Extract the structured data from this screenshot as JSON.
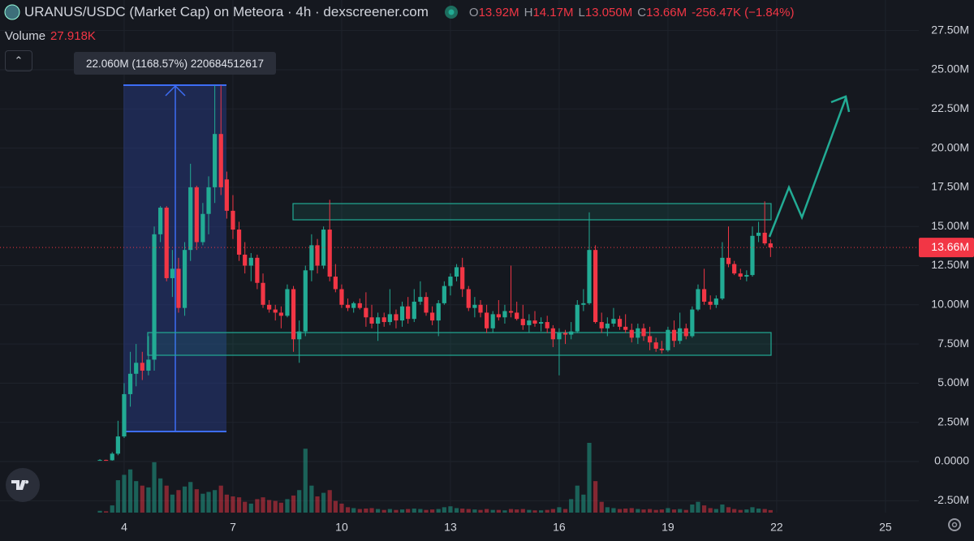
{
  "chart_data": {
    "type": "candlestick",
    "title": "URANUS/USDC (Market Cap) on Meteora · 4h · dexscreener.com",
    "ohlc_legend": [
      {
        "key": "O",
        "text": "13.92M"
      },
      {
        "key": "H",
        "text": "14.17M"
      },
      {
        "key": "L",
        "text": "13.050M"
      },
      {
        "key": "C",
        "text": "13.66M"
      }
    ],
    "change_text": "-256.47K (−1.84%)",
    "volume_label": "Volume",
    "volume_value_label": "27.918K",
    "measure_text": "22.060M (1168.57%) 220684512617",
    "last_price_label": "13.66M",
    "up_color": "#22ab94",
    "down_color": "#f23645",
    "xlim": [
      0.575,
      25.92
    ],
    "xticks": [
      4,
      7,
      10,
      13,
      16,
      19,
      22,
      25
    ],
    "ylim": [
      -3.26,
      29.45
    ],
    "yticks": [
      {
        "value": 27.5,
        "label": "27.50M"
      },
      {
        "value": 25,
        "label": "25.00M"
      },
      {
        "value": 22.5,
        "label": "22.50M"
      },
      {
        "value": 20,
        "label": "20.00M"
      },
      {
        "value": 17.5,
        "label": "17.50M"
      },
      {
        "value": 15,
        "label": "15.00M"
      },
      {
        "value": 12.5,
        "label": "12.50M"
      },
      {
        "value": 10,
        "label": "10.00M"
      },
      {
        "value": 7.5,
        "label": "7.50M"
      },
      {
        "value": 5,
        "label": "5.00M"
      },
      {
        "value": 2.5,
        "label": "2.50M"
      },
      {
        "value": 0,
        "label": "0.0000"
      },
      {
        "value": -2.5,
        "label": "-2.50M"
      }
    ],
    "x": [
      3.33,
      3.5,
      3.67,
      3.83,
      4,
      4.17,
      4.33,
      4.5,
      4.67,
      4.83,
      5,
      5.17,
      5.33,
      5.5,
      5.67,
      5.83,
      6,
      6.17,
      6.33,
      6.5,
      6.67,
      6.83,
      7,
      7.17,
      7.33,
      7.5,
      7.67,
      7.83,
      8,
      8.17,
      8.33,
      8.5,
      8.67,
      8.83,
      9,
      9.17,
      9.33,
      9.5,
      9.67,
      9.83,
      10,
      10.17,
      10.33,
      10.5,
      10.67,
      10.83,
      11,
      11.17,
      11.33,
      11.5,
      11.67,
      11.83,
      12,
      12.17,
      12.33,
      12.5,
      12.67,
      12.83,
      13,
      13.17,
      13.33,
      13.5,
      13.67,
      13.83,
      14,
      14.17,
      14.33,
      14.5,
      14.67,
      14.83,
      15,
      15.17,
      15.33,
      15.5,
      15.67,
      15.83,
      16,
      16.17,
      16.33,
      16.5,
      16.67,
      16.83,
      17,
      17.17,
      17.33,
      17.5,
      17.67,
      17.83,
      18,
      18.17,
      18.33,
      18.5,
      18.67,
      18.83,
      19,
      19.17,
      19.33,
      19.5,
      19.67,
      19.83,
      20,
      20.17,
      20.33,
      20.5,
      20.67,
      20.83,
      21,
      21.17,
      21.33,
      21.5,
      21.67,
      21.83
    ],
    "open": [
      0.1,
      0.1,
      0.08,
      0.5,
      1.6,
      4.3,
      5.6,
      6.3,
      5.8,
      6.5,
      14.5,
      16.2,
      11.7,
      12.3,
      9.8,
      13.5,
      17.5,
      14.0,
      15.8,
      17.5,
      20.9,
      18.0,
      16.0,
      14.8,
      13.2,
      12.5,
      13.0,
      11.4,
      10.0,
      9.7,
      9.5,
      9.3,
      11.0,
      7.8,
      8.3,
      12.2,
      13.8,
      12.5,
      14.8,
      11.8,
      11.0,
      10.0,
      9.8,
      10.1,
      9.8,
      9.2,
      8.8,
      9.2,
      8.9,
      9.4,
      9.0,
      9.9,
      9.1,
      10.2,
      10.5,
      9.5,
      9.0,
      10.1,
      11.2,
      11.8,
      12.4,
      11.0,
      9.8,
      10.0,
      9.5,
      8.5,
      9.4,
      9.2,
      9.6,
      9.5,
      9.1,
      8.7,
      9.0,
      8.8,
      8.9,
      8.5,
      7.8,
      8.2,
      8.1,
      8.3,
      10.0,
      10.1,
      13.5,
      8.9,
      8.5,
      8.8,
      9.1,
      8.6,
      8.4,
      7.9,
      8.5,
      8.0,
      7.6,
      7.2,
      7.1,
      8.4,
      7.7,
      8.5,
      8.0,
      9.7,
      11.0,
      10.2,
      10.0,
      10.4,
      13.0,
      12.6,
      12.0,
      11.8,
      11.9,
      14.4,
      14.6,
      13.92
    ],
    "high": [
      0.15,
      0.12,
      0.6,
      2.6,
      5.0,
      7.0,
      7.5,
      7.0,
      8.0,
      15.0,
      16.3,
      16.3,
      13.5,
      13.0,
      14.0,
      19.0,
      17.6,
      16.5,
      18.2,
      24.0,
      24.0,
      18.5,
      17.0,
      15.3,
      14.0,
      13.3,
      13.2,
      12.0,
      10.3,
      10.0,
      9.9,
      11.3,
      11.2,
      9.0,
      12.5,
      14.5,
      14.2,
      15.0,
      16.7,
      12.6,
      11.3,
      10.4,
      10.2,
      10.4,
      10.8,
      10.0,
      9.5,
      9.5,
      11.0,
      9.7,
      10.2,
      10.5,
      11.0,
      11.5,
      10.8,
      9.9,
      10.3,
      11.5,
      12.0,
      12.6,
      13.0,
      11.2,
      10.5,
      10.3,
      10.0,
      9.6,
      10.3,
      10.0,
      12.5,
      10.2,
      10.0,
      9.4,
      9.6,
      9.2,
      9.3,
      8.7,
      8.5,
      8.4,
      8.9,
      10.3,
      11.0,
      15.9,
      13.8,
      9.5,
      9.2,
      9.8,
      9.3,
      9.4,
      8.8,
      8.8,
      8.8,
      8.6,
      7.9,
      7.7,
      8.6,
      9.0,
      9.5,
      8.8,
      9.9,
      11.3,
      12.3,
      10.6,
      10.6,
      14.0,
      15.0,
      12.8,
      12.3,
      12.2,
      15.0,
      15.3,
      16.6,
      14.17
    ],
    "low": [
      0.05,
      0.05,
      0.05,
      0.4,
      1.5,
      3.5,
      4.8,
      5.2,
      5.5,
      5.8,
      14.0,
      11.5,
      10.5,
      9.5,
      9.3,
      12.8,
      13.5,
      13.8,
      14.5,
      16.5,
      17.0,
      15.5,
      14.2,
      12.8,
      12.0,
      11.5,
      11.0,
      9.8,
      9.5,
      9.0,
      8.5,
      9.2,
      7.0,
      6.3,
      8.0,
      11.5,
      12.0,
      12.3,
      11.5,
      10.8,
      9.8,
      9.6,
      9.5,
      9.7,
      8.6,
      8.5,
      7.7,
      8.6,
      8.7,
      8.5,
      8.6,
      8.8,
      8.9,
      10.0,
      9.3,
      8.7,
      8.0,
      10.0,
      10.6,
      11.5,
      10.5,
      9.6,
      9.2,
      9.2,
      8.2,
      8.2,
      9.0,
      8.8,
      9.2,
      9.0,
      8.4,
      8.2,
      8.6,
      8.3,
      8.2,
      7.3,
      5.5,
      7.5,
      7.8,
      8.2,
      9.6,
      10.0,
      8.8,
      8.2,
      8.0,
      8.6,
      8.4,
      8.2,
      7.6,
      7.5,
      7.7,
      7.1,
      7.0,
      6.9,
      7.0,
      7.3,
      7.5,
      7.8,
      7.9,
      9.6,
      10.0,
      9.7,
      9.8,
      10.3,
      12.4,
      11.9,
      11.6,
      11.5,
      11.8,
      14.0,
      13.8,
      13.05
    ],
    "close": [
      0.1,
      0.08,
      0.5,
      1.6,
      4.3,
      5.6,
      6.3,
      5.8,
      6.5,
      14.5,
      16.2,
      11.7,
      12.3,
      9.8,
      13.5,
      17.5,
      14.0,
      15.8,
      17.5,
      20.9,
      17.5,
      16.0,
      14.8,
      13.2,
      12.5,
      13.0,
      11.4,
      10.0,
      9.7,
      9.5,
      9.3,
      11.0,
      7.8,
      8.3,
      12.2,
      13.8,
      12.5,
      14.8,
      11.8,
      11.0,
      10.0,
      9.8,
      10.1,
      9.8,
      9.2,
      8.8,
      9.2,
      8.9,
      9.4,
      9.0,
      9.9,
      9.1,
      10.2,
      10.5,
      9.5,
      9.0,
      10.1,
      11.2,
      11.8,
      12.4,
      11.0,
      9.8,
      10.0,
      9.5,
      8.5,
      9.4,
      9.2,
      9.6,
      9.5,
      9.1,
      8.7,
      9.0,
      8.8,
      8.9,
      8.5,
      7.8,
      8.2,
      8.1,
      8.3,
      10.0,
      10.1,
      13.5,
      8.9,
      8.5,
      8.8,
      9.1,
      8.6,
      8.4,
      7.9,
      8.5,
      8.0,
      7.6,
      7.2,
      7.1,
      8.4,
      7.7,
      8.5,
      8.0,
      9.7,
      11.0,
      10.2,
      10.0,
      10.4,
      13.0,
      12.6,
      12.0,
      11.8,
      11.9,
      14.4,
      14.6,
      13.92,
      13.66
    ],
    "volume": [
      20,
      15,
      80,
      360,
      420,
      480,
      350,
      300,
      280,
      560,
      380,
      300,
      200,
      250,
      290,
      340,
      260,
      210,
      230,
      250,
      300,
      200,
      180,
      170,
      120,
      100,
      150,
      170,
      140,
      130,
      110,
      150,
      190,
      250,
      710,
      300,
      180,
      220,
      250,
      130,
      100,
      60,
      50,
      40,
      45,
      50,
      40,
      30,
      40,
      30,
      35,
      40,
      45,
      40,
      30,
      35,
      40,
      60,
      70,
      50,
      45,
      40,
      35,
      30,
      40,
      30,
      30,
      25,
      40,
      35,
      40,
      30,
      25,
      25,
      30,
      40,
      60,
      40,
      150,
      300,
      200,
      775,
      350,
      120,
      60,
      50,
      40,
      45,
      50,
      40,
      35,
      40,
      30,
      35,
      50,
      35,
      40,
      30,
      90,
      120,
      80,
      50,
      40,
      90,
      60,
      40,
      30,
      35,
      60,
      45,
      40,
      27.918
    ]
  }
}
